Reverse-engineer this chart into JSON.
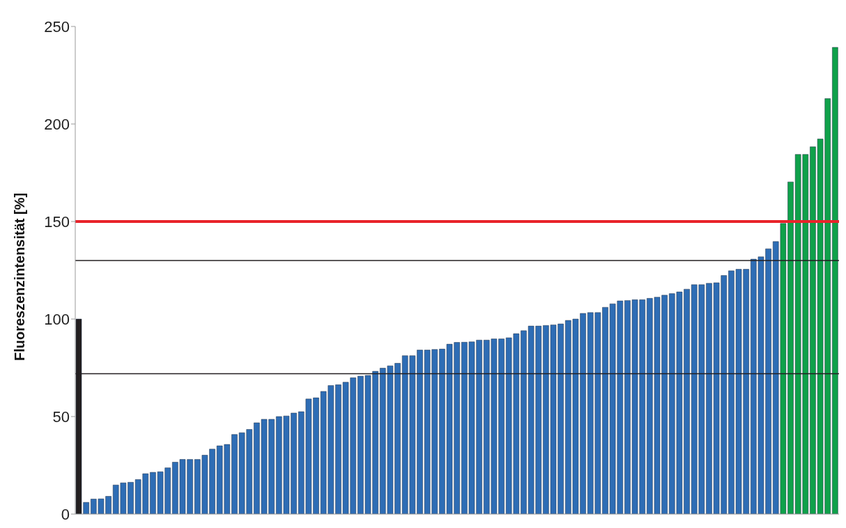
{
  "chart_data": {
    "type": "bar",
    "ylabel": "Fluoreszenzintensität [%]",
    "categories": [
      null,
      null,
      null,
      null,
      null,
      null,
      null,
      null,
      null,
      null,
      null,
      null,
      null,
      null,
      null,
      null,
      null,
      null,
      null,
      null,
      null,
      null,
      null,
      null,
      null,
      null,
      null,
      null,
      null,
      null,
      null,
      null,
      null,
      null,
      null,
      null,
      null,
      null,
      null,
      null,
      null,
      null,
      null,
      null,
      null,
      null,
      null,
      null,
      null,
      null,
      null,
      null,
      null,
      null,
      null,
      null,
      null,
      null,
      null,
      null,
      null,
      null,
      null,
      null,
      null,
      null,
      null,
      null,
      null,
      null,
      null,
      null,
      null,
      null,
      null,
      null,
      null,
      null,
      null,
      null,
      null,
      null,
      null,
      null,
      null,
      null,
      null,
      null,
      null,
      null,
      null,
      null,
      null,
      null,
      null,
      null,
      null,
      null,
      null,
      null,
      null,
      null,
      null
    ],
    "values": [
      100,
      6,
      7.7,
      7.8,
      9.1,
      14.9,
      16,
      16.3,
      17.7,
      20.7,
      21.4,
      21.7,
      23.7,
      26.6,
      28,
      28,
      28,
      30.2,
      33.3,
      35,
      35.7,
      40.8,
      41.7,
      43.4,
      46.8,
      48.6,
      48.6,
      50,
      50.3,
      51.8,
      52.5,
      59,
      59.6,
      62.9,
      65.9,
      66.3,
      67.6,
      69.9,
      70.7,
      71.1,
      73.2,
      74.8,
      76,
      77.3,
      81.2,
      81.2,
      84.1,
      84.1,
      84.4,
      84.6,
      87.1,
      88,
      88.1,
      88.3,
      89.2,
      89.2,
      89.8,
      89.8,
      90.4,
      92.5,
      94,
      96.4,
      96.4,
      96.7,
      97,
      97.5,
      99.3,
      100,
      102.9,
      103.3,
      103.3,
      106,
      107.8,
      109.3,
      109.5,
      109.9,
      109.9,
      110.6,
      111.2,
      112.2,
      113,
      113.9,
      115.3,
      117.6,
      117.6,
      118.3,
      118.6,
      122.3,
      124.7,
      125.5,
      125.5,
      130.7,
      131.9,
      136,
      139.7,
      149,
      170.3,
      184.4,
      184.4,
      188.3,
      192.3,
      213,
      239.3
    ],
    "colors": [
      "#231f20",
      "#2e6db5",
      "#2e6db5",
      "#2e6db5",
      "#2e6db5",
      "#2e6db5",
      "#2e6db5",
      "#2e6db5",
      "#2e6db5",
      "#2e6db5",
      "#2e6db5",
      "#2e6db5",
      "#2e6db5",
      "#2e6db5",
      "#2e6db5",
      "#2e6db5",
      "#2e6db5",
      "#2e6db5",
      "#2e6db5",
      "#2e6db5",
      "#2e6db5",
      "#2e6db5",
      "#2e6db5",
      "#2e6db5",
      "#2e6db5",
      "#2e6db5",
      "#2e6db5",
      "#2e6db5",
      "#2e6db5",
      "#2e6db5",
      "#2e6db5",
      "#2e6db5",
      "#2e6db5",
      "#2e6db5",
      "#2e6db5",
      "#2e6db5",
      "#2e6db5",
      "#2e6db5",
      "#2e6db5",
      "#2e6db5",
      "#2e6db5",
      "#2e6db5",
      "#2e6db5",
      "#2e6db5",
      "#2e6db5",
      "#2e6db5",
      "#2e6db5",
      "#2e6db5",
      "#2e6db5",
      "#2e6db5",
      "#2e6db5",
      "#2e6db5",
      "#2e6db5",
      "#2e6db5",
      "#2e6db5",
      "#2e6db5",
      "#2e6db5",
      "#2e6db5",
      "#2e6db5",
      "#2e6db5",
      "#2e6db5",
      "#2e6db5",
      "#2e6db5",
      "#2e6db5",
      "#2e6db5",
      "#2e6db5",
      "#2e6db5",
      "#2e6db5",
      "#2e6db5",
      "#2e6db5",
      "#2e6db5",
      "#2e6db5",
      "#2e6db5",
      "#2e6db5",
      "#2e6db5",
      "#2e6db5",
      "#2e6db5",
      "#2e6db5",
      "#2e6db5",
      "#2e6db5",
      "#2e6db5",
      "#2e6db5",
      "#2e6db5",
      "#2e6db5",
      "#2e6db5",
      "#2e6db5",
      "#2e6db5",
      "#2e6db5",
      "#2e6db5",
      "#2e6db5",
      "#2e6db5",
      "#2e6db5",
      "#2e6db5",
      "#2e6db5",
      "#2e6db5",
      "#0fa14a",
      "#0fa14a",
      "#0fa14a",
      "#0fa14a",
      "#0fa14a",
      "#0fa14a",
      "#0fa14a",
      "#0fa14a"
    ],
    "ylim": [
      0,
      250
    ],
    "yticks": [
      0,
      50,
      100,
      150,
      200,
      250
    ],
    "grid": false,
    "tick_labels": "y",
    "ref_lines": [
      {
        "axis": "y",
        "value": 150,
        "color": "#e8232a"
      },
      {
        "axis": "y",
        "value": 130,
        "color": "#231f20"
      },
      {
        "axis": "y",
        "value": 72,
        "color": "#231f20"
      }
    ]
  }
}
